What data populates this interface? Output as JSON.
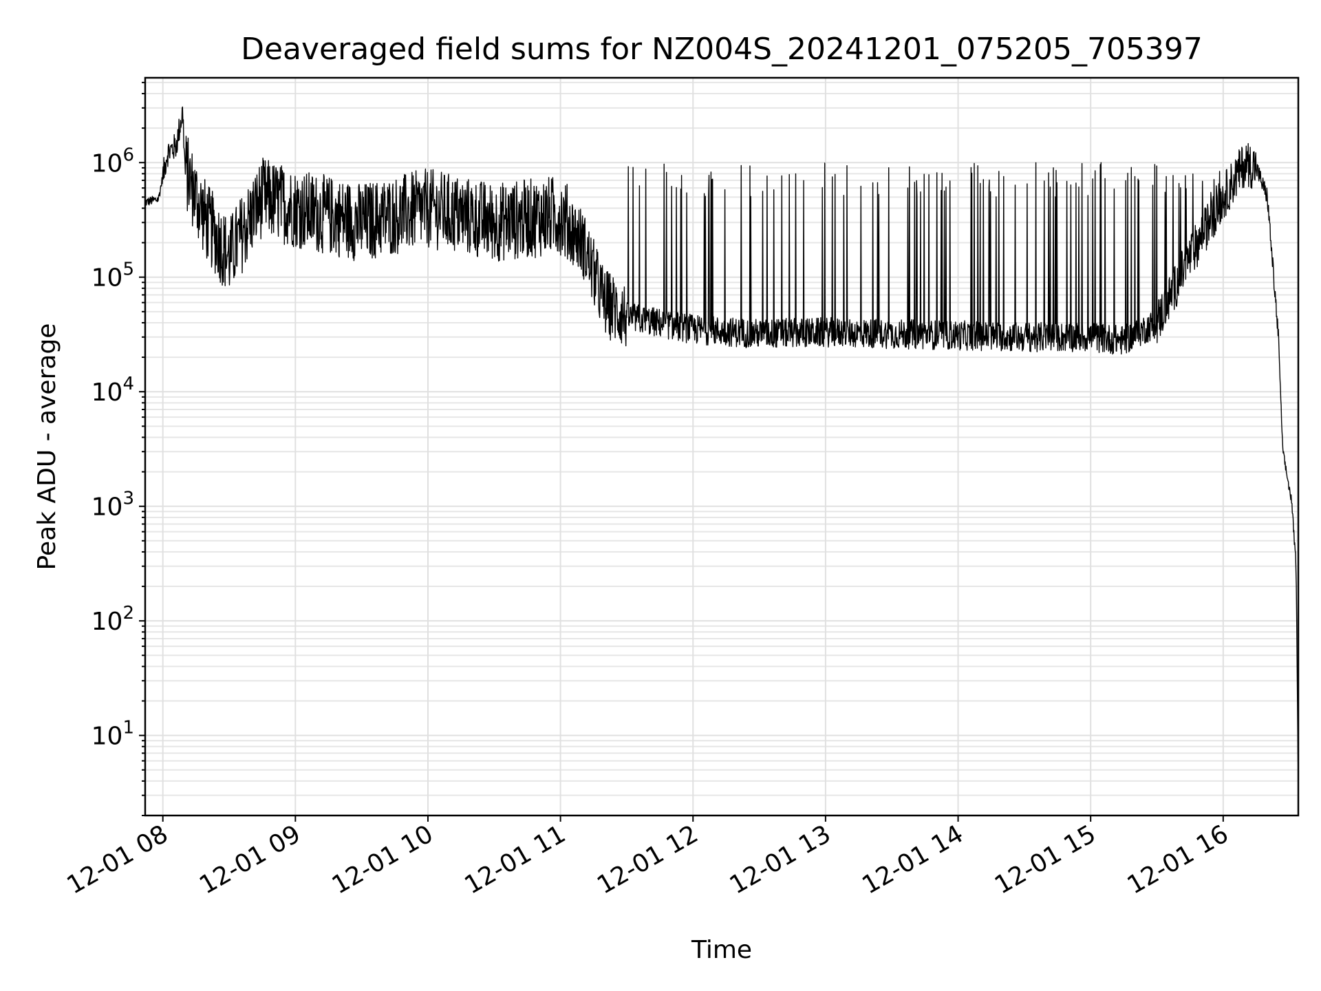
{
  "chart_data": {
    "type": "line",
    "title": "Deaveraged field sums for NZ004S_20241201_075205_705397",
    "xlabel": "Time",
    "ylabel": "Peak ADU - average",
    "yscale": "log",
    "ylim": [
      2,
      5500000
    ],
    "xlim": [
      "2024-12-01 07:52",
      "2024-12-01 16:34"
    ],
    "grid": true,
    "legend": "none",
    "x_ticks": [
      {
        "label": "12-01 08",
        "value": "2024-12-01 08:00"
      },
      {
        "label": "12-01 09",
        "value": "2024-12-01 09:00"
      },
      {
        "label": "12-01 10",
        "value": "2024-12-01 10:00"
      },
      {
        "label": "12-01 11",
        "value": "2024-12-01 11:00"
      },
      {
        "label": "12-01 12",
        "value": "2024-12-01 12:00"
      },
      {
        "label": "12-01 13",
        "value": "2024-12-01 13:00"
      },
      {
        "label": "12-01 14",
        "value": "2024-12-01 14:00"
      },
      {
        "label": "12-01 15",
        "value": "2024-12-01 15:00"
      },
      {
        "label": "12-01 16",
        "value": "2024-12-01 16:00"
      }
    ],
    "y_ticks": [
      {
        "base": "10",
        "exp": "1",
        "value": 10
      },
      {
        "base": "10",
        "exp": "2",
        "value": 100
      },
      {
        "base": "10",
        "exp": "3",
        "value": 1000
      },
      {
        "base": "10",
        "exp": "4",
        "value": 10000
      },
      {
        "base": "10",
        "exp": "5",
        "value": 100000
      },
      {
        "base": "10",
        "exp": "6",
        "value": 1000000
      }
    ],
    "series": [
      {
        "color": "#000000",
        "points": [
          [
            "2024-12-01 07:52",
            450000
          ],
          [
            "2024-12-01 07:58",
            480000
          ],
          [
            "2024-12-01 08:02",
            1200000
          ],
          [
            "2024-12-01 08:06",
            1400000
          ],
          [
            "2024-12-01 08:09",
            2800000
          ],
          [
            "2024-12-01 08:10",
            900000
          ],
          [
            "2024-12-01 08:15",
            500000
          ],
          [
            "2024-12-01 08:20",
            300000
          ],
          [
            "2024-12-01 08:30",
            150000
          ],
          [
            "2024-12-01 08:45",
            500000
          ],
          [
            "2024-12-01 09:00",
            400000
          ],
          [
            "2024-12-01 09:30",
            300000
          ],
          [
            "2024-12-01 10:00",
            400000
          ],
          [
            "2024-12-01 10:30",
            300000
          ],
          [
            "2024-12-01 11:00",
            350000
          ],
          [
            "2024-12-01 11:10",
            200000
          ],
          [
            "2024-12-01 11:20",
            60000
          ],
          [
            "2024-12-01 11:30",
            45000
          ],
          [
            "2024-12-01 12:00",
            35000
          ],
          [
            "2024-12-01 12:30",
            32000
          ],
          [
            "2024-12-01 13:00",
            33000
          ],
          [
            "2024-12-01 13:30",
            32000
          ],
          [
            "2024-12-01 14:00",
            31000
          ],
          [
            "2024-12-01 14:30",
            30000
          ],
          [
            "2024-12-01 15:00",
            30000
          ],
          [
            "2024-12-01 15:15",
            28000
          ],
          [
            "2024-12-01 15:30",
            40000
          ],
          [
            "2024-12-01 15:45",
            150000
          ],
          [
            "2024-12-01 16:00",
            500000
          ],
          [
            "2024-12-01 16:10",
            1000000
          ],
          [
            "2024-12-01 16:15",
            900000
          ],
          [
            "2024-12-01 16:20",
            500000
          ],
          [
            "2024-12-01 16:25",
            30000
          ],
          [
            "2024-12-01 16:27",
            3000
          ],
          [
            "2024-12-01 16:29",
            1800
          ],
          [
            "2024-12-01 16:31",
            1100
          ],
          [
            "2024-12-01 16:33",
            300
          ],
          [
            "2024-12-01 16:34",
            3.7
          ]
        ]
      }
    ]
  }
}
